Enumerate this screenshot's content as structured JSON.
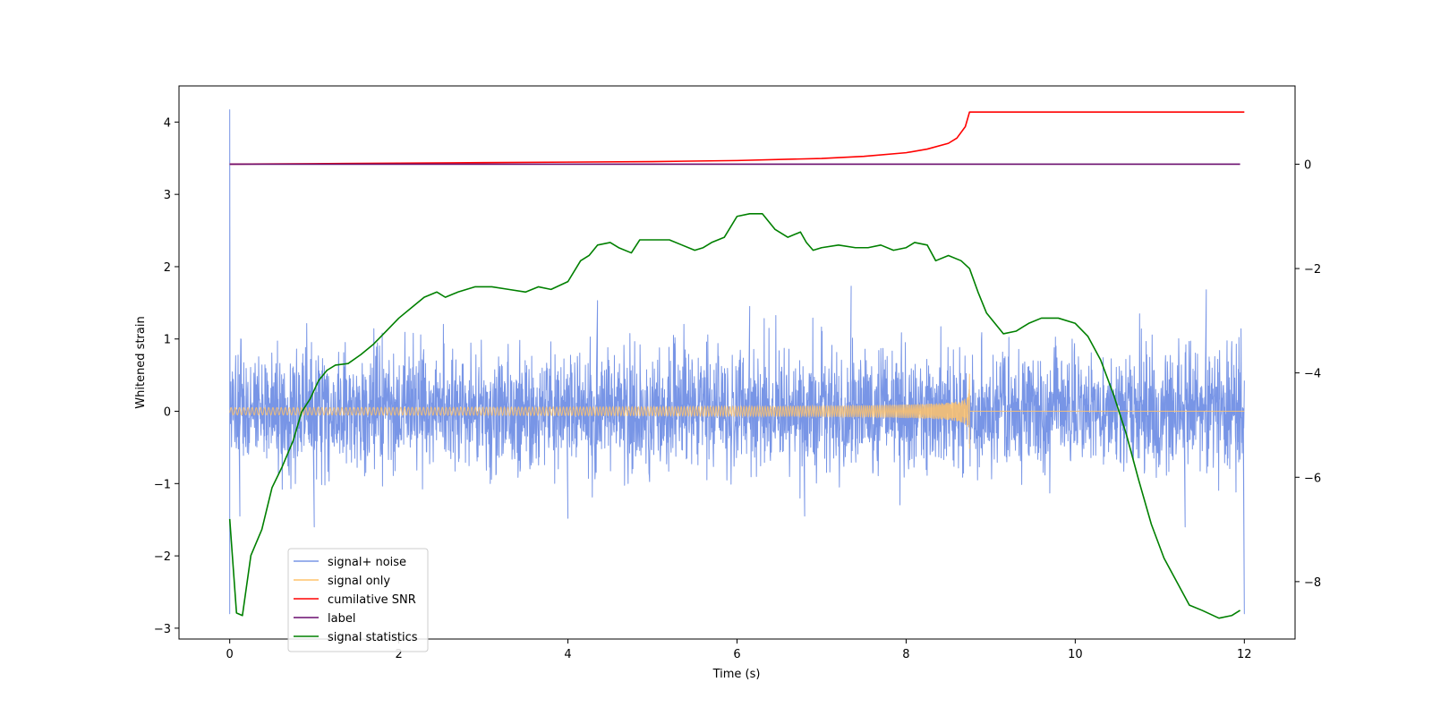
{
  "chart_data": {
    "type": "line",
    "title": "",
    "xlabel": "Time (s)",
    "ylabel": "Whitened strain",
    "y2label": "",
    "xlim": [
      -0.6,
      12.6
    ],
    "ylim": [
      -3.15,
      4.5
    ],
    "y2lim": [
      -9.1,
      1.5
    ],
    "x_ticks": [
      0,
      2,
      4,
      6,
      8,
      10,
      12
    ],
    "y_ticks": [
      -3,
      -2,
      -1,
      0,
      1,
      2,
      3,
      4
    ],
    "y2_ticks": [
      -8,
      -6,
      -4,
      -2,
      0
    ],
    "grid": false,
    "legend_position": "lower-left",
    "series": [
      {
        "name": "signal+ noise",
        "axis": "left",
        "color": "#7895e6",
        "kind": "noise",
        "x_range": [
          0,
          12
        ],
        "typical_amplitude": 0.75,
        "spike_peaks": [
          [
            0.0,
            4.17
          ],
          [
            0.0,
            2.0
          ],
          [
            0.0,
            -2.8
          ],
          [
            0.12,
            -1.45
          ],
          [
            1.0,
            -1.6
          ],
          [
            4.0,
            -1.48
          ],
          [
            4.35,
            1.53
          ],
          [
            6.15,
            1.45
          ],
          [
            6.8,
            -1.45
          ],
          [
            7.35,
            1.73
          ],
          [
            11.3,
            -1.6
          ],
          [
            11.55,
            1.68
          ],
          [
            12.0,
            -2.8
          ]
        ]
      },
      {
        "name": "signal only",
        "axis": "left",
        "color": "#ffc36b",
        "kind": "chirp",
        "x_range": [
          0,
          8.75
        ],
        "peak_time": 8.75,
        "peak_amplitude": 0.52,
        "after_peak_value": 0
      },
      {
        "name": "cumilative SNR",
        "axis": "right",
        "color": "#ff0000",
        "kind": "line",
        "x": [
          0,
          1,
          2,
          3,
          4,
          5,
          6,
          7,
          7.5,
          8,
          8.25,
          8.5,
          8.6,
          8.7,
          8.75,
          9,
          10,
          11,
          12
        ],
        "values": [
          0.0,
          0.01,
          0.02,
          0.03,
          0.04,
          0.05,
          0.07,
          0.11,
          0.15,
          0.22,
          0.29,
          0.4,
          0.5,
          0.72,
          1.0,
          1.0,
          1.0,
          1.0,
          1.0
        ]
      },
      {
        "name": "label",
        "axis": "right",
        "color": "#6a0d6e",
        "kind": "line",
        "x": [
          0,
          11.95
        ],
        "values": [
          0,
          0
        ]
      },
      {
        "name": "signal statistics",
        "axis": "right",
        "color": "#008000",
        "kind": "line",
        "x": [
          0,
          0.08,
          0.15,
          0.25,
          0.38,
          0.5,
          0.62,
          0.75,
          0.85,
          0.95,
          1.05,
          1.15,
          1.25,
          1.4,
          1.55,
          1.7,
          1.85,
          2.0,
          2.15,
          2.3,
          2.45,
          2.55,
          2.7,
          2.9,
          3.1,
          3.3,
          3.5,
          3.65,
          3.8,
          4.0,
          4.15,
          4.25,
          4.35,
          4.5,
          4.6,
          4.75,
          4.85,
          4.95,
          5.05,
          5.2,
          5.35,
          5.5,
          5.6,
          5.7,
          5.85,
          6.0,
          6.15,
          6.3,
          6.45,
          6.6,
          6.75,
          6.82,
          6.9,
          7.0,
          7.2,
          7.4,
          7.55,
          7.7,
          7.85,
          8.0,
          8.1,
          8.25,
          8.35,
          8.5,
          8.65,
          8.75,
          8.85,
          8.95,
          9.05,
          9.15,
          9.3,
          9.45,
          9.6,
          9.8,
          10.0,
          10.15,
          10.3,
          10.45,
          10.6,
          10.75,
          10.9,
          11.05,
          11.2,
          11.35,
          11.5,
          11.7,
          11.85,
          11.95
        ],
        "values": [
          -6.8,
          -8.6,
          -8.65,
          -7.5,
          -7.0,
          -6.2,
          -5.8,
          -5.3,
          -4.75,
          -4.5,
          -4.15,
          -3.95,
          -3.85,
          -3.82,
          -3.65,
          -3.45,
          -3.2,
          -2.95,
          -2.75,
          -2.55,
          -2.45,
          -2.55,
          -2.45,
          -2.35,
          -2.35,
          -2.4,
          -2.45,
          -2.35,
          -2.4,
          -2.25,
          -1.85,
          -1.75,
          -1.55,
          -1.5,
          -1.6,
          -1.7,
          -1.45,
          -1.45,
          -1.45,
          -1.45,
          -1.55,
          -1.65,
          -1.6,
          -1.5,
          -1.4,
          -1.0,
          -0.95,
          -0.95,
          -1.25,
          -1.4,
          -1.3,
          -1.5,
          -1.65,
          -1.6,
          -1.55,
          -1.6,
          -1.6,
          -1.55,
          -1.65,
          -1.6,
          -1.5,
          -1.55,
          -1.85,
          -1.75,
          -1.85,
          -2.0,
          -2.45,
          -2.85,
          -3.05,
          -3.25,
          -3.2,
          -3.05,
          -2.95,
          -2.95,
          -3.05,
          -3.3,
          -3.75,
          -4.4,
          -5.15,
          -6.05,
          -6.9,
          -7.55,
          -8.0,
          -8.45,
          -8.55,
          -8.7,
          -8.65,
          -8.55
        ]
      }
    ]
  }
}
